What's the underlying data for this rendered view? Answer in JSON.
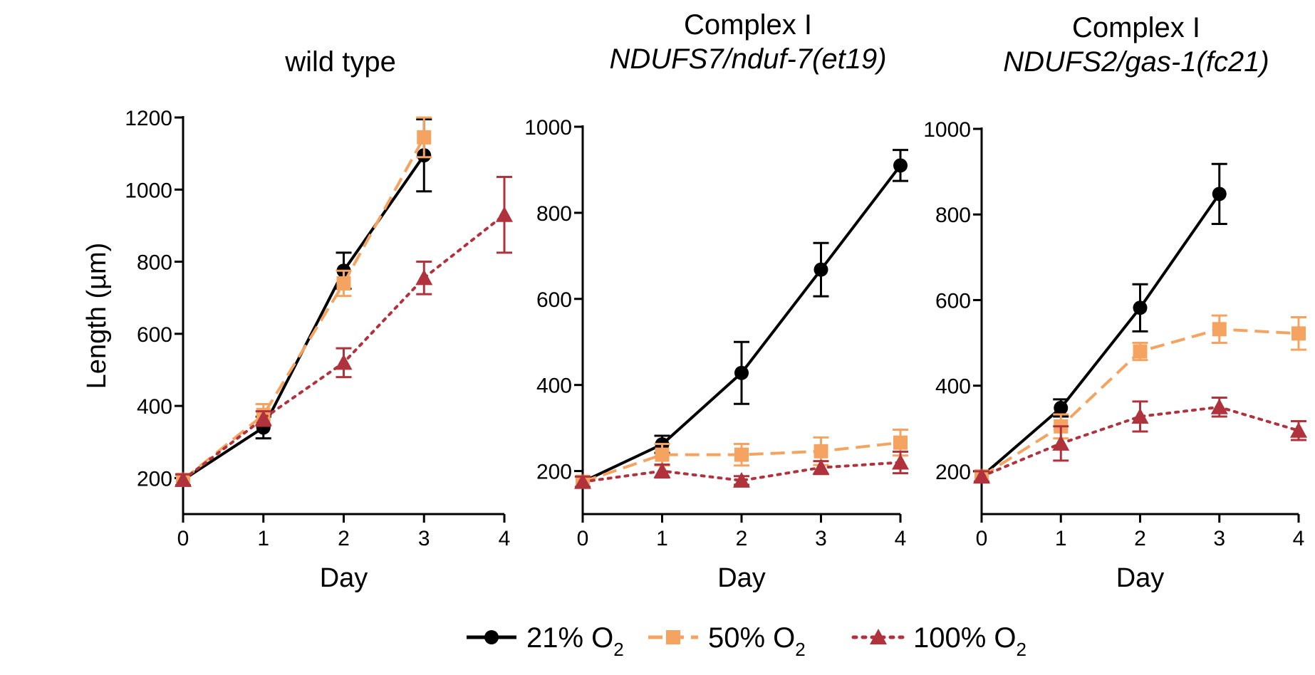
{
  "chart_data": [
    {
      "type": "line",
      "title": "wild type",
      "subtitle": "",
      "xlabel": "Day",
      "ylabel": "Length (µm)",
      "x": [
        0,
        1,
        2,
        3,
        4
      ],
      "xlim": [
        0,
        4
      ],
      "ylim": [
        100,
        1200
      ],
      "yticks": [
        200,
        400,
        600,
        800,
        1000,
        1200
      ],
      "series": [
        {
          "name": "21% O2",
          "x": [
            0,
            1,
            2,
            3
          ],
          "values": [
            195,
            340,
            775,
            1095
          ],
          "errors": [
            15,
            30,
            50,
            100
          ]
        },
        {
          "name": "50% O2",
          "x": [
            0,
            1,
            2,
            3
          ],
          "values": [
            195,
            375,
            740,
            1145
          ],
          "errors": [
            15,
            30,
            35,
            55
          ]
        },
        {
          "name": "100% O2",
          "x": [
            0,
            1,
            2,
            3,
            4
          ],
          "values": [
            195,
            365,
            520,
            755,
            930
          ],
          "errors": [
            15,
            20,
            40,
            45,
            105
          ]
        }
      ]
    },
    {
      "type": "line",
      "title": "Complex I",
      "subtitle": "NDUFS7/nduf-7(et19)",
      "xlabel": "Day",
      "ylabel": "",
      "x": [
        0,
        1,
        2,
        3,
        4
      ],
      "xlim": [
        0,
        4
      ],
      "ylim": [
        100,
        1000
      ],
      "yticks": [
        200,
        400,
        600,
        800,
        1000
      ],
      "series": [
        {
          "name": "21% O2",
          "x": [
            0,
            1,
            2,
            3,
            4
          ],
          "values": [
            175,
            262,
            428,
            668,
            910
          ],
          "errors": [
            12,
            20,
            72,
            62,
            36
          ]
        },
        {
          "name": "50% O2",
          "x": [
            0,
            1,
            2,
            3,
            4
          ],
          "values": [
            175,
            238,
            238,
            246,
            266
          ],
          "errors": [
            12,
            25,
            25,
            32,
            30
          ]
        },
        {
          "name": "100% O2",
          "x": [
            0,
            1,
            2,
            3,
            4
          ],
          "values": [
            175,
            200,
            178,
            208,
            220
          ],
          "errors": [
            12,
            15,
            10,
            15,
            25
          ]
        }
      ]
    },
    {
      "type": "line",
      "title": "Complex I",
      "subtitle": "NDUFS2/gas-1(fc21)",
      "xlabel": "Day",
      "ylabel": "",
      "x": [
        0,
        1,
        2,
        3,
        4
      ],
      "xlim": [
        0,
        4
      ],
      "ylim": [
        100,
        1000
      ],
      "yticks": [
        200,
        400,
        600,
        800,
        1000
      ],
      "series": [
        {
          "name": "21% O2",
          "x": [
            0,
            1,
            2,
            3
          ],
          "values": [
            188,
            348,
            582,
            848
          ],
          "errors": [
            12,
            20,
            55,
            70
          ]
        },
        {
          "name": "50% O2",
          "x": [
            0,
            1,
            2,
            3,
            4
          ],
          "values": [
            188,
            305,
            480,
            532,
            522
          ],
          "errors": [
            12,
            28,
            20,
            32,
            38
          ]
        },
        {
          "name": "100% O2",
          "x": [
            0,
            1,
            2,
            3,
            4
          ],
          "values": [
            188,
            265,
            328,
            350,
            295
          ],
          "errors": [
            12,
            40,
            35,
            22,
            22
          ]
        }
      ]
    }
  ],
  "legend": {
    "position": "bottom-center",
    "items": [
      {
        "label": "21% O",
        "sub": "2",
        "series": "21% O2"
      },
      {
        "label": "50% O",
        "sub": "2",
        "series": "50% O2"
      },
      {
        "label": "100% O",
        "sub": "2",
        "series": "100% O2"
      }
    ]
  },
  "styles": {
    "21% O2": {
      "color": "#000000",
      "marker": "circle",
      "dash": "solid"
    },
    "50% O2": {
      "color": "#F4A460",
      "marker": "square",
      "dash": "dashed"
    },
    "100% O2": {
      "color": "#B0323C",
      "marker": "triangle",
      "dash": "dotted"
    }
  }
}
